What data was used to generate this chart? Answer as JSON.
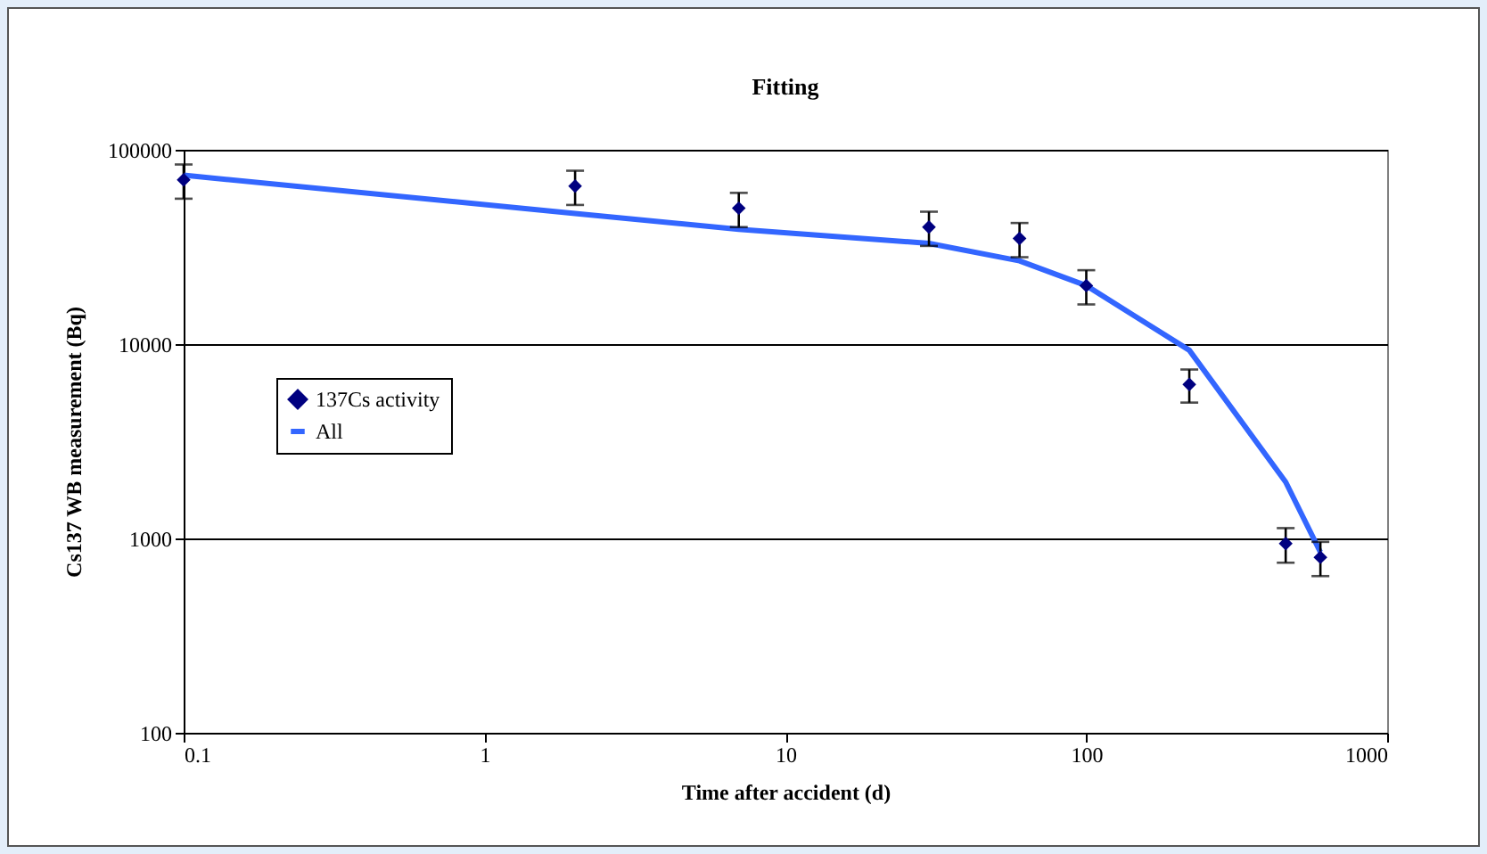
{
  "chart_data": {
    "type": "scatter",
    "title": "Fitting",
    "xlabel": "Time after accident (d)",
    "ylabel": "Cs137 WB measurement (Bq)",
    "x": [
      0.1,
      2,
      7,
      30,
      60,
      100,
      220,
      460,
      600
    ],
    "series": [
      {
        "name": "137Cs activity",
        "color": "#000080",
        "marker": "diamond",
        "values": [
          70000,
          65000,
          50000,
          40000,
          35000,
          20000,
          6200,
          940,
          800
        ],
        "errors": [
          14000,
          13000,
          10000,
          8000,
          7000,
          4000,
          1200,
          190,
          160
        ]
      },
      {
        "name": "All",
        "type": "line",
        "color": "#3366ff",
        "values": [
          74000,
          47000,
          39000,
          33000,
          26800,
          20000,
          9300,
          1950,
          850
        ]
      }
    ],
    "log": "xy",
    "xlim": [
      0.1,
      1000
    ],
    "ylim": [
      100,
      100000
    ],
    "xticks": [
      0.1,
      1,
      10,
      100,
      1000
    ],
    "yticks": [
      100,
      1000,
      10000,
      100000
    ],
    "grid": "y",
    "legend": "left"
  }
}
